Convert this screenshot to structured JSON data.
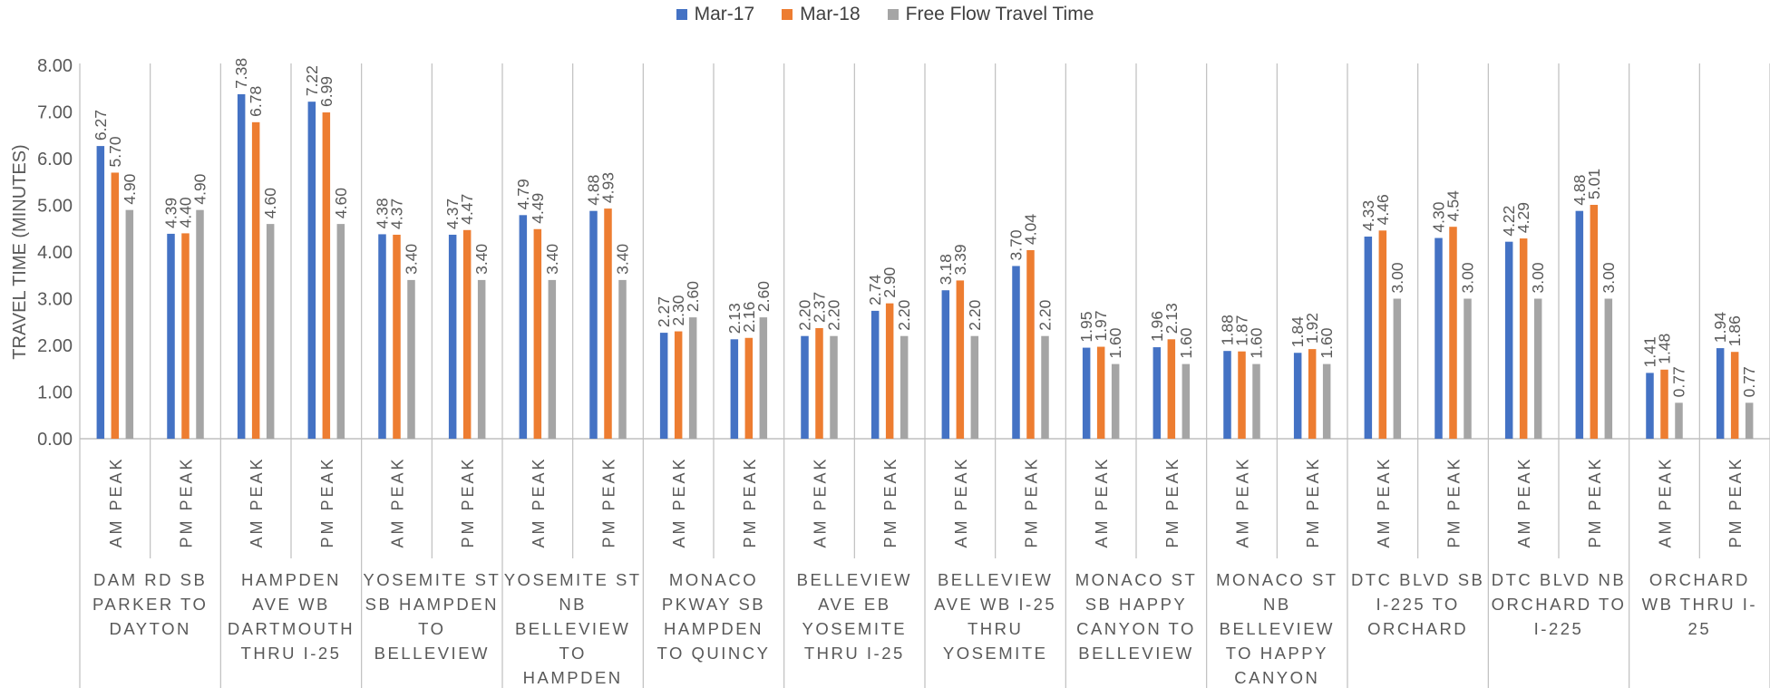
{
  "chart_data": {
    "type": "bar",
    "ylabel": "TRAVEL TIME (MINUTES)",
    "ylim": [
      0,
      8
    ],
    "yticks": [
      "0.00",
      "1.00",
      "2.00",
      "3.00",
      "4.00",
      "5.00",
      "6.00",
      "7.00",
      "8.00"
    ],
    "grid": false,
    "legend_position": "top",
    "groups": [
      {
        "label": "DAM RD SB PARKER TO DAYTON",
        "lines": [
          "DAM RD SB",
          "PARKER TO",
          "DAYTON"
        ]
      },
      {
        "label": "HAMPDEN AVE WB DARTMOUTH THRU I-25",
        "lines": [
          "HAMPDEN",
          "AVE WB",
          "DARTMOUTH",
          "THRU I-25"
        ]
      },
      {
        "label": "YOSEMITE ST SB HAMPDEN TO BELLEVIEW",
        "lines": [
          "YOSEMITE ST",
          "SB HAMPDEN",
          "TO",
          "BELLEVIEW"
        ]
      },
      {
        "label": "YOSEMITE ST NB BELLEVIEW TO HAMPDEN",
        "lines": [
          "YOSEMITE ST",
          "NB",
          "BELLEVIEW",
          "TO",
          "HAMPDEN"
        ]
      },
      {
        "label": "MONACO PKWAY SB HAMPDEN TO QUINCY",
        "lines": [
          "MONACO",
          "PKWAY SB",
          "HAMPDEN",
          "TO QUINCY"
        ]
      },
      {
        "label": "BELLEVIEW AVE EB YOSEMITE THRU I-25",
        "lines": [
          "BELLEVIEW",
          "AVE EB",
          "YOSEMITE",
          "THRU I-25"
        ]
      },
      {
        "label": "BELLEVIEW AVE WB I-25 THRU YOSEMITE",
        "lines": [
          "BELLEVIEW",
          "AVE WB I-25",
          "THRU",
          "YOSEMITE"
        ]
      },
      {
        "label": "MONACO ST SB HAPPY CANYON TO BELLEVIEW",
        "lines": [
          "MONACO ST",
          "SB HAPPY",
          "CANYON TO",
          "BELLEVIEW"
        ]
      },
      {
        "label": "MONACO ST NB BELLEVIEW TO HAPPY CANYON",
        "lines": [
          "MONACO ST",
          "NB",
          "BELLEVIEW",
          "TO HAPPY",
          "CANYON"
        ]
      },
      {
        "label": "DTC BLVD SB I-225 TO ORCHARD",
        "lines": [
          "DTC BLVD SB",
          "I-225 TO",
          "ORCHARD"
        ]
      },
      {
        "label": "DTC BLVD NB ORCHARD TO I-225",
        "lines": [
          "DTC BLVD NB",
          "ORCHARD TO",
          "I-225"
        ]
      },
      {
        "label": "ORCHARD WB THRU I-25",
        "lines": [
          "ORCHARD",
          "WB THRU I-",
          "25"
        ]
      }
    ],
    "categories": [
      "AM PEAK",
      "PM PEAK",
      "AM PEAK",
      "PM PEAK",
      "AM PEAK",
      "PM PEAK",
      "AM PEAK",
      "PM PEAK",
      "AM PEAK",
      "PM PEAK",
      "AM PEAK",
      "PM PEAK",
      "AM PEAK",
      "PM PEAK",
      "AM PEAK",
      "PM PEAK",
      "AM PEAK",
      "PM PEAK",
      "AM PEAK",
      "PM PEAK",
      "AM PEAK",
      "PM PEAK",
      "AM PEAK",
      "PM PEAK"
    ],
    "series": [
      {
        "name": "Mar-17",
        "color": "#4472C4",
        "values": [
          6.27,
          4.39,
          7.38,
          7.22,
          4.38,
          4.37,
          4.79,
          4.88,
          2.27,
          2.13,
          2.2,
          2.74,
          3.18,
          3.7,
          1.95,
          1.96,
          1.88,
          1.84,
          4.33,
          4.3,
          4.22,
          4.88,
          1.41,
          1.94
        ],
        "labels": [
          "6.27",
          "4.39",
          "7.38",
          "7.22",
          "4.38",
          "4.37",
          "4.79",
          "4.88",
          "2.27",
          "2.13",
          "2.20",
          "2.74",
          "3.18",
          "3.70",
          "1.95",
          "1.96",
          "1.88",
          "1.84",
          "4.33",
          "4.30",
          "4.22",
          "4.88",
          "1.41",
          "1.94"
        ]
      },
      {
        "name": "Mar-18",
        "color": "#ED7D31",
        "values": [
          5.7,
          4.4,
          6.78,
          6.99,
          4.37,
          4.47,
          4.49,
          4.93,
          2.3,
          2.16,
          2.37,
          2.9,
          3.39,
          4.04,
          1.97,
          2.13,
          1.87,
          1.92,
          4.46,
          4.54,
          4.29,
          5.01,
          1.48,
          1.86
        ],
        "labels": [
          "5.70",
          "4.40",
          "6.78",
          "6.99",
          "4.37",
          "4.47",
          "4.49",
          "4.93",
          "2.30",
          "2.16",
          "2.37",
          "2.90",
          "3.39",
          "4.04",
          "1.97",
          "2.13",
          "1.87",
          "1.92",
          "4.46",
          "4.54",
          "4.29",
          "5.01",
          "1.48",
          "1.86"
        ]
      },
      {
        "name": "Free Flow Travel Time",
        "color": "#A5A5A5",
        "values": [
          4.9,
          4.9,
          4.6,
          4.6,
          3.4,
          3.4,
          3.4,
          3.4,
          2.6,
          2.6,
          2.2,
          2.2,
          2.2,
          2.2,
          1.6,
          1.6,
          1.6,
          1.6,
          3.0,
          3.0,
          3.0,
          3.0,
          0.77,
          0.77
        ],
        "labels": [
          "4.90",
          "4.90",
          "4.60",
          "4.60",
          "3.40",
          "3.40",
          "3.40",
          "3.40",
          "2.60",
          "2.60",
          "2.20",
          "2.20",
          "2.20",
          "2.20",
          "1.60",
          "1.60",
          "1.60",
          "1.60",
          "3.00",
          "3.00",
          "3.00",
          "3.00",
          "0.77",
          "0.77"
        ]
      }
    ]
  }
}
